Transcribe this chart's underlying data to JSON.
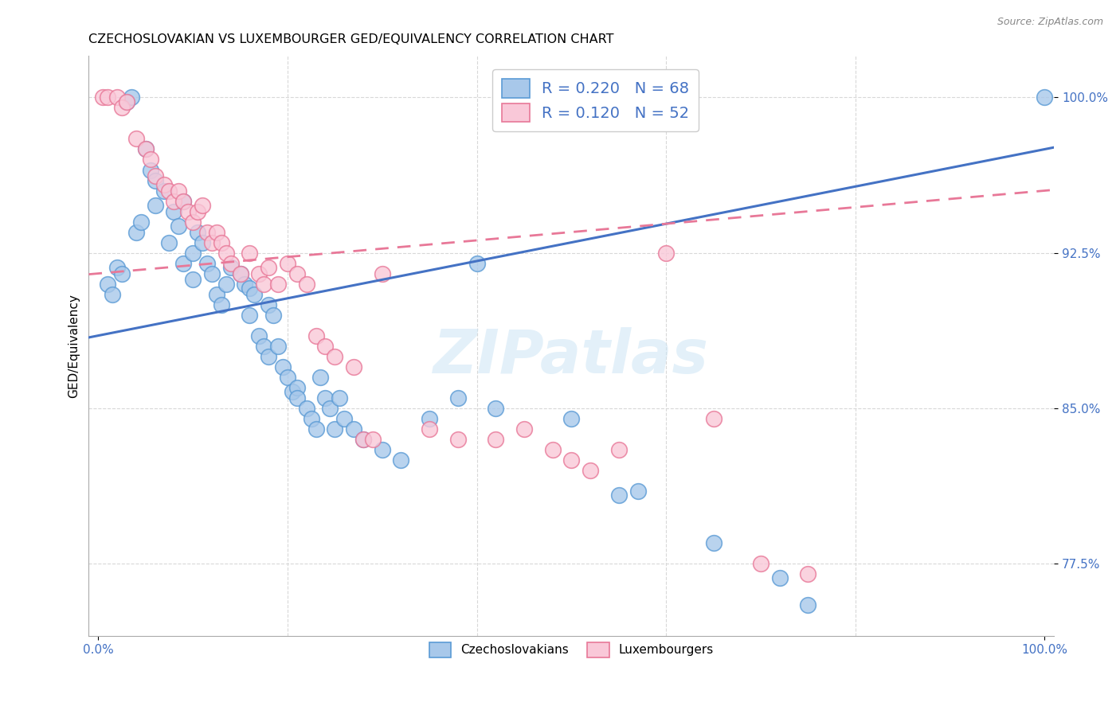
{
  "title": "CZECHOSLOVAKIAN VS LUXEMBOURGER GED/EQUIVALENCY CORRELATION CHART",
  "source": "Source: ZipAtlas.com",
  "ylabel": "GED/Equivalency",
  "y_ticks": [
    77.5,
    85.0,
    92.5,
    100.0
  ],
  "y_min": 74.0,
  "y_max": 102.0,
  "x_min": -1,
  "x_max": 101,
  "legend_entries": [
    {
      "label": "R = 0.220   N = 68",
      "color": "#a8c8ea"
    },
    {
      "label": "R = 0.120   N = 52",
      "color": "#f9c8d8"
    }
  ],
  "legend_labels_bottom": [
    "Czechoslovakians",
    "Luxembourgers"
  ],
  "blue_color_fill": "#a8c8ea",
  "blue_color_edge": "#5b9bd5",
  "pink_color_fill": "#f9c8d8",
  "pink_color_edge": "#e87898",
  "blue_line_color": "#4472c4",
  "pink_line_color": "#e87898",
  "blue_scatter": [
    [
      1.0,
      91.0
    ],
    [
      1.5,
      90.5
    ],
    [
      2.0,
      91.8
    ],
    [
      2.5,
      91.5
    ],
    [
      3.0,
      99.8
    ],
    [
      3.5,
      100.0
    ],
    [
      4.0,
      93.5
    ],
    [
      4.5,
      94.0
    ],
    [
      5.0,
      97.5
    ],
    [
      5.5,
      96.5
    ],
    [
      6.0,
      96.0
    ],
    [
      6.0,
      94.8
    ],
    [
      7.0,
      95.5
    ],
    [
      7.5,
      93.0
    ],
    [
      8.0,
      94.5
    ],
    [
      8.5,
      93.8
    ],
    [
      9.0,
      95.0
    ],
    [
      9.0,
      92.0
    ],
    [
      10.0,
      92.5
    ],
    [
      10.0,
      91.2
    ],
    [
      10.5,
      93.5
    ],
    [
      11.0,
      93.0
    ],
    [
      11.5,
      92.0
    ],
    [
      12.0,
      91.5
    ],
    [
      12.5,
      90.5
    ],
    [
      13.0,
      90.0
    ],
    [
      13.5,
      91.0
    ],
    [
      14.0,
      91.8
    ],
    [
      15.0,
      91.5
    ],
    [
      15.5,
      91.0
    ],
    [
      16.0,
      90.8
    ],
    [
      16.0,
      89.5
    ],
    [
      16.5,
      90.5
    ],
    [
      17.0,
      88.5
    ],
    [
      17.5,
      88.0
    ],
    [
      18.0,
      90.0
    ],
    [
      18.0,
      87.5
    ],
    [
      18.5,
      89.5
    ],
    [
      19.0,
      88.0
    ],
    [
      19.5,
      87.0
    ],
    [
      20.0,
      86.5
    ],
    [
      20.5,
      85.8
    ],
    [
      21.0,
      86.0
    ],
    [
      21.0,
      85.5
    ],
    [
      22.0,
      85.0
    ],
    [
      22.5,
      84.5
    ],
    [
      23.0,
      84.0
    ],
    [
      23.5,
      86.5
    ],
    [
      24.0,
      85.5
    ],
    [
      24.5,
      85.0
    ],
    [
      25.0,
      84.0
    ],
    [
      25.5,
      85.5
    ],
    [
      26.0,
      84.5
    ],
    [
      27.0,
      84.0
    ],
    [
      28.0,
      83.5
    ],
    [
      30.0,
      83.0
    ],
    [
      32.0,
      82.5
    ],
    [
      35.0,
      84.5
    ],
    [
      38.0,
      85.5
    ],
    [
      40.0,
      92.0
    ],
    [
      42.0,
      85.0
    ],
    [
      50.0,
      84.5
    ],
    [
      55.0,
      80.8
    ],
    [
      57.0,
      81.0
    ],
    [
      65.0,
      78.5
    ],
    [
      72.0,
      76.8
    ],
    [
      75.0,
      75.5
    ],
    [
      100.0,
      100.0
    ]
  ],
  "pink_scatter": [
    [
      0.5,
      100.0
    ],
    [
      1.0,
      100.0
    ],
    [
      2.0,
      100.0
    ],
    [
      2.5,
      99.5
    ],
    [
      3.0,
      99.8
    ],
    [
      4.0,
      98.0
    ],
    [
      5.0,
      97.5
    ],
    [
      5.5,
      97.0
    ],
    [
      6.0,
      96.2
    ],
    [
      7.0,
      95.8
    ],
    [
      7.5,
      95.5
    ],
    [
      8.0,
      95.0
    ],
    [
      8.5,
      95.5
    ],
    [
      9.0,
      95.0
    ],
    [
      9.5,
      94.5
    ],
    [
      10.0,
      94.0
    ],
    [
      10.5,
      94.5
    ],
    [
      11.0,
      94.8
    ],
    [
      11.5,
      93.5
    ],
    [
      12.0,
      93.0
    ],
    [
      12.5,
      93.5
    ],
    [
      13.0,
      93.0
    ],
    [
      13.5,
      92.5
    ],
    [
      14.0,
      92.0
    ],
    [
      15.0,
      91.5
    ],
    [
      16.0,
      92.5
    ],
    [
      17.0,
      91.5
    ],
    [
      17.5,
      91.0
    ],
    [
      18.0,
      91.8
    ],
    [
      19.0,
      91.0
    ],
    [
      20.0,
      92.0
    ],
    [
      21.0,
      91.5
    ],
    [
      22.0,
      91.0
    ],
    [
      23.0,
      88.5
    ],
    [
      24.0,
      88.0
    ],
    [
      25.0,
      87.5
    ],
    [
      27.0,
      87.0
    ],
    [
      28.0,
      83.5
    ],
    [
      29.0,
      83.5
    ],
    [
      30.0,
      91.5
    ],
    [
      35.0,
      84.0
    ],
    [
      38.0,
      83.5
    ],
    [
      42.0,
      83.5
    ],
    [
      45.0,
      84.0
    ],
    [
      48.0,
      83.0
    ],
    [
      50.0,
      82.5
    ],
    [
      52.0,
      82.0
    ],
    [
      55.0,
      83.0
    ],
    [
      60.0,
      92.5
    ],
    [
      65.0,
      84.5
    ],
    [
      70.0,
      77.5
    ],
    [
      75.0,
      77.0
    ]
  ],
  "blue_trend": [
    0.09,
    88.5
  ],
  "pink_trend": [
    0.04,
    91.5
  ],
  "watermark_text": "ZIPatlas",
  "grid_color": "#d8d8d8",
  "title_fontsize": 11.5,
  "tick_color": "#4472c4"
}
